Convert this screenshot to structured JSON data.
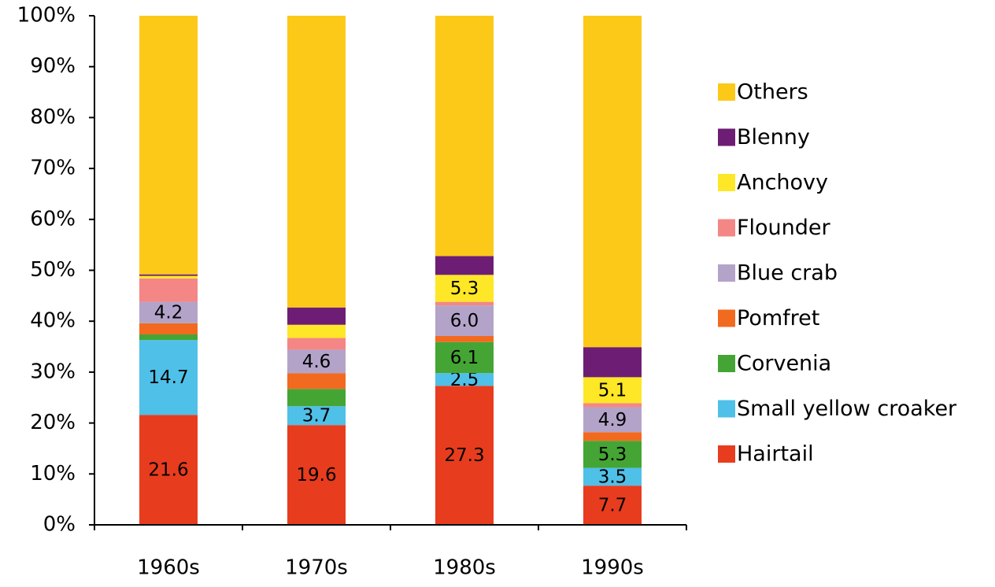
{
  "chart_data": {
    "type": "stacked_bar",
    "categories": [
      "1960s",
      "1970s",
      "1980s",
      "1990s"
    ],
    "ylim": [
      0,
      100
    ],
    "yticks": [
      {
        "value": 0,
        "label": "0%"
      },
      {
        "value": 10,
        "label": "10%"
      },
      {
        "value": 20,
        "label": "20%"
      },
      {
        "value": 30,
        "label": "30%"
      },
      {
        "value": 40,
        "label": "40%"
      },
      {
        "value": 50,
        "label": "50%"
      },
      {
        "value": 60,
        "label": "60%"
      },
      {
        "value": 70,
        "label": "70%"
      },
      {
        "value": 80,
        "label": "80%"
      },
      {
        "value": 90,
        "label": "90%"
      },
      {
        "value": 100,
        "label": "100%"
      }
    ],
    "series": [
      {
        "name": "Hairtail",
        "color": "#e83c1e",
        "values": [
          21.6,
          19.6,
          27.3,
          7.7
        ],
        "value_labels": [
          "21.6",
          "19.6",
          "27.3",
          "7.7"
        ]
      },
      {
        "name": "Small yellow croaker",
        "color": "#4fc0e8",
        "values": [
          14.7,
          3.7,
          2.5,
          3.5
        ],
        "value_labels": [
          "14.7",
          "3.7",
          "2.5",
          "3.5"
        ]
      },
      {
        "name": "Corvenia",
        "color": "#44a534",
        "values": [
          1.1,
          3.4,
          6.1,
          5.3
        ],
        "value_labels": [
          null,
          null,
          "6.1",
          "5.3"
        ]
      },
      {
        "name": "Pomfret",
        "color": "#f26a1f",
        "values": [
          2.2,
          3.1,
          1.2,
          1.7
        ]
      },
      {
        "name": "Blue crab",
        "color": "#b3a3c9",
        "values": [
          4.2,
          4.6,
          6.0,
          4.9
        ],
        "value_labels": [
          "4.2",
          "4.6",
          "6.0",
          "4.9"
        ]
      },
      {
        "name": "Flounder",
        "color": "#f48686",
        "values": [
          4.6,
          2.3,
          0.7,
          0.8
        ]
      },
      {
        "name": "Anchovy",
        "color": "#fde726",
        "values": [
          0.5,
          2.6,
          5.3,
          5.1
        ],
        "value_labels": [
          null,
          null,
          "5.3",
          "5.1"
        ]
      },
      {
        "name": "Blenny",
        "color": "#6d1e74",
        "values": [
          0.3,
          3.4,
          3.7,
          5.9
        ]
      },
      {
        "name": "Others",
        "color": "#fcc918",
        "values": [
          50.8,
          57.3,
          47.2,
          65.1
        ]
      }
    ]
  }
}
